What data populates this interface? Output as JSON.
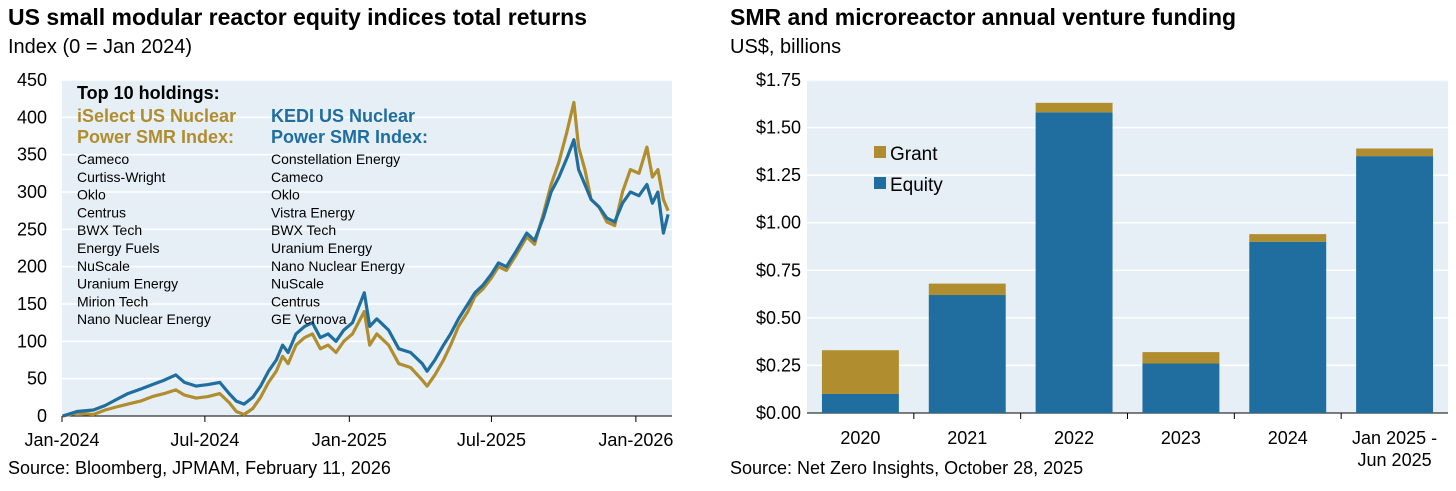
{
  "chart_data": [
    {
      "type": "line",
      "title": "US small modular reactor equity indices total returns",
      "subtitle": "Index (0 = Jan 2024)",
      "source": "Source: Bloomberg, JPMAM, February 11, 2026",
      "ylim": [
        0,
        450
      ],
      "yticks": [
        0,
        50,
        100,
        150,
        200,
        250,
        300,
        350,
        400,
        450
      ],
      "xticks": [
        "Jan-2024",
        "Jul-2024",
        "Jan-2025",
        "Jul-2025",
        "Jan-2026"
      ],
      "grid": true,
      "annotation_heading": "Top 10 holdings:",
      "colors": {
        "iselect": "#B08D2E",
        "kedi": "#1F6E9F",
        "plot_bg": "#E6EFF5",
        "grid": "#FFFFFF"
      },
      "series": [
        {
          "name": "iSelect US Nuclear Power SMR Index",
          "name_lines": [
            "iSelect US Nuclear",
            "Power SMR Index:"
          ],
          "holdings": [
            "Cameco",
            "Curtiss-Wright",
            "Oklo",
            "Centrus",
            "BWX Tech",
            "Energy Fuels",
            "NuScale",
            "Uranium Energy",
            "Mirion Tech",
            "Nano Nuclear Energy"
          ],
          "points": [
            [
              "2024-01-02",
              0
            ],
            [
              "2024-01-20",
              4
            ],
            [
              "2024-02-10",
              2
            ],
            [
              "2024-02-25",
              8
            ],
            [
              "2024-03-10",
              12
            ],
            [
              "2024-03-25",
              16
            ],
            [
              "2024-04-10",
              20
            ],
            [
              "2024-04-25",
              26
            ],
            [
              "2024-05-10",
              30
            ],
            [
              "2024-05-25",
              35
            ],
            [
              "2024-06-05",
              28
            ],
            [
              "2024-06-20",
              24
            ],
            [
              "2024-07-05",
              26
            ],
            [
              "2024-07-20",
              30
            ],
            [
              "2024-08-01",
              18
            ],
            [
              "2024-08-10",
              6
            ],
            [
              "2024-08-20",
              2
            ],
            [
              "2024-08-31",
              10
            ],
            [
              "2024-09-10",
              25
            ],
            [
              "2024-09-20",
              45
            ],
            [
              "2024-09-30",
              60
            ],
            [
              "2024-10-08",
              80
            ],
            [
              "2024-10-15",
              70
            ],
            [
              "2024-10-25",
              95
            ],
            [
              "2024-11-05",
              105
            ],
            [
              "2024-11-15",
              110
            ],
            [
              "2024-11-25",
              90
            ],
            [
              "2024-12-05",
              95
            ],
            [
              "2024-12-15",
              85
            ],
            [
              "2024-12-25",
              100
            ],
            [
              "2025-01-05",
              110
            ],
            [
              "2025-01-20",
              140
            ],
            [
              "2025-01-27",
              95
            ],
            [
              "2025-02-05",
              110
            ],
            [
              "2025-02-20",
              95
            ],
            [
              "2025-03-05",
              70
            ],
            [
              "2025-03-20",
              65
            ],
            [
              "2025-04-04",
              48
            ],
            [
              "2025-04-10",
              40
            ],
            [
              "2025-04-20",
              55
            ],
            [
              "2025-05-01",
              75
            ],
            [
              "2025-05-10",
              95
            ],
            [
              "2025-05-20",
              120
            ],
            [
              "2025-06-01",
              140
            ],
            [
              "2025-06-10",
              160
            ],
            [
              "2025-06-20",
              170
            ],
            [
              "2025-07-01",
              185
            ],
            [
              "2025-07-10",
              200
            ],
            [
              "2025-07-20",
              195
            ],
            [
              "2025-08-01",
              215
            ],
            [
              "2025-08-15",
              240
            ],
            [
              "2025-08-25",
              230
            ],
            [
              "2025-09-05",
              270
            ],
            [
              "2025-09-15",
              310
            ],
            [
              "2025-09-25",
              340
            ],
            [
              "2025-10-05",
              380
            ],
            [
              "2025-10-14",
              420
            ],
            [
              "2025-10-20",
              360
            ],
            [
              "2025-10-28",
              330
            ],
            [
              "2025-11-05",
              290
            ],
            [
              "2025-11-15",
              280
            ],
            [
              "2025-11-25",
              260
            ],
            [
              "2025-12-05",
              255
            ],
            [
              "2025-12-15",
              300
            ],
            [
              "2025-12-25",
              330
            ],
            [
              "2026-01-05",
              325
            ],
            [
              "2026-01-15",
              360
            ],
            [
              "2026-01-22",
              320
            ],
            [
              "2026-01-29",
              330
            ],
            [
              "2026-02-05",
              290
            ],
            [
              "2026-02-11",
              275
            ]
          ]
        },
        {
          "name": "KEDI US Nuclear Power SMR Index",
          "name_lines": [
            "KEDI US Nuclear",
            "Power SMR Index:"
          ],
          "holdings": [
            "Constellation Energy",
            "Cameco",
            "Oklo",
            "Vistra Energy",
            "BWX Tech",
            "Uranium Energy",
            "Nano Nuclear Energy",
            "NuScale",
            "Centrus",
            "GE Vernova"
          ],
          "points": [
            [
              "2024-01-02",
              0
            ],
            [
              "2024-01-20",
              6
            ],
            [
              "2024-02-10",
              8
            ],
            [
              "2024-02-25",
              14
            ],
            [
              "2024-03-10",
              22
            ],
            [
              "2024-03-25",
              30
            ],
            [
              "2024-04-10",
              36
            ],
            [
              "2024-04-25",
              42
            ],
            [
              "2024-05-10",
              48
            ],
            [
              "2024-05-25",
              55
            ],
            [
              "2024-06-05",
              45
            ],
            [
              "2024-06-20",
              40
            ],
            [
              "2024-07-05",
              42
            ],
            [
              "2024-07-20",
              45
            ],
            [
              "2024-08-01",
              30
            ],
            [
              "2024-08-10",
              20
            ],
            [
              "2024-08-20",
              16
            ],
            [
              "2024-08-31",
              25
            ],
            [
              "2024-09-10",
              40
            ],
            [
              "2024-09-20",
              60
            ],
            [
              "2024-09-30",
              75
            ],
            [
              "2024-10-08",
              95
            ],
            [
              "2024-10-15",
              85
            ],
            [
              "2024-10-25",
              110
            ],
            [
              "2024-11-05",
              120
            ],
            [
              "2024-11-15",
              125
            ],
            [
              "2024-11-25",
              105
            ],
            [
              "2024-12-05",
              110
            ],
            [
              "2024-12-15",
              100
            ],
            [
              "2024-12-25",
              115
            ],
            [
              "2025-01-05",
              125
            ],
            [
              "2025-01-20",
              165
            ],
            [
              "2025-01-27",
              120
            ],
            [
              "2025-02-05",
              130
            ],
            [
              "2025-02-20",
              115
            ],
            [
              "2025-03-05",
              90
            ],
            [
              "2025-03-20",
              85
            ],
            [
              "2025-04-04",
              70
            ],
            [
              "2025-04-10",
              60
            ],
            [
              "2025-04-20",
              75
            ],
            [
              "2025-05-01",
              95
            ],
            [
              "2025-05-10",
              110
            ],
            [
              "2025-05-20",
              130
            ],
            [
              "2025-06-01",
              150
            ],
            [
              "2025-06-10",
              165
            ],
            [
              "2025-06-20",
              175
            ],
            [
              "2025-07-01",
              190
            ],
            [
              "2025-07-10",
              205
            ],
            [
              "2025-07-20",
              200
            ],
            [
              "2025-08-01",
              220
            ],
            [
              "2025-08-15",
              245
            ],
            [
              "2025-08-25",
              235
            ],
            [
              "2025-09-05",
              265
            ],
            [
              "2025-09-15",
              300
            ],
            [
              "2025-09-25",
              320
            ],
            [
              "2025-10-05",
              345
            ],
            [
              "2025-10-14",
              370
            ],
            [
              "2025-10-20",
              330
            ],
            [
              "2025-10-28",
              310
            ],
            [
              "2025-11-05",
              290
            ],
            [
              "2025-11-15",
              280
            ],
            [
              "2025-11-25",
              265
            ],
            [
              "2025-12-05",
              260
            ],
            [
              "2025-12-15",
              285
            ],
            [
              "2025-12-25",
              300
            ],
            [
              "2026-01-05",
              295
            ],
            [
              "2026-01-15",
              310
            ],
            [
              "2026-01-22",
              285
            ],
            [
              "2026-01-29",
              300
            ],
            [
              "2026-02-05",
              245
            ],
            [
              "2026-02-11",
              270
            ]
          ]
        }
      ]
    },
    {
      "type": "bar",
      "stacked": true,
      "title": "SMR and microreactor annual venture funding",
      "subtitle": "US$, billions",
      "source": "Source: Net Zero Insights, October 28, 2025",
      "categories": [
        [
          "2020"
        ],
        [
          "2021"
        ],
        [
          "2022"
        ],
        [
          "2023"
        ],
        [
          "2024"
        ],
        [
          "Jan 2025 -",
          "Jun 2025"
        ]
      ],
      "ylim": [
        0,
        1.75
      ],
      "yticks": [
        "$0.00",
        "$0.25",
        "$0.50",
        "$0.75",
        "$1.00",
        "$1.25",
        "$1.50",
        "$1.75"
      ],
      "ytick_values": [
        0,
        0.25,
        0.5,
        0.75,
        1.0,
        1.25,
        1.5,
        1.75
      ],
      "grid": true,
      "legend_position": "upper-left",
      "colors": {
        "Grant": "#B08D2E",
        "Equity": "#1F6E9F",
        "plot_bg": "#E6EFF5",
        "grid": "#FFFFFF"
      },
      "series": [
        {
          "name": "Equity",
          "values": [
            0.1,
            0.62,
            1.58,
            0.26,
            0.9,
            1.35
          ]
        },
        {
          "name": "Grant",
          "values": [
            0.23,
            0.06,
            0.05,
            0.06,
            0.04,
            0.04
          ]
        }
      ]
    }
  ]
}
